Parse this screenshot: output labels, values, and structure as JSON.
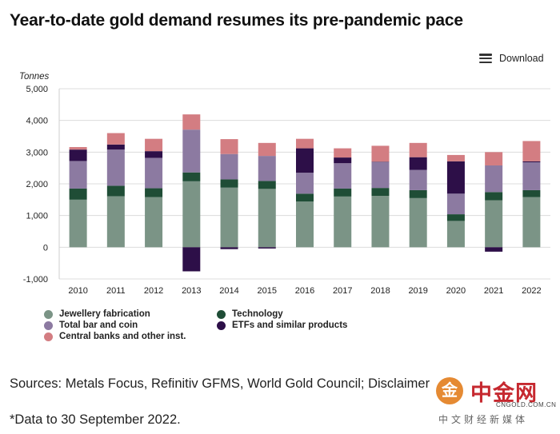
{
  "title": "Year-to-date gold demand resumes its pre-pandemic pace",
  "download_label": "Download",
  "icons": {
    "download": "hamburger-menu-icon"
  },
  "chart_data": {
    "type": "bar",
    "stacked": true,
    "title": "Year-to-date gold demand resumes its pre-pandemic pace",
    "ylabel": "Tonnes",
    "xlabel": "",
    "ylim": [
      -1000,
      5000
    ],
    "yticks": [
      -1000,
      0,
      1000,
      2000,
      3000,
      4000,
      5000
    ],
    "ytick_labels": [
      "-1,000",
      "0",
      "1,000",
      "2,000",
      "3,000",
      "4,000",
      "5,000"
    ],
    "grid": true,
    "categories": [
      "2010",
      "2011",
      "2012",
      "2013",
      "2014",
      "2015",
      "2016",
      "2017",
      "2018",
      "2019",
      "2020",
      "2021",
      "2022"
    ],
    "series": [
      {
        "name": "Jewellery fabrication",
        "color": "#7b9486",
        "values": [
          1500,
          1610,
          1580,
          2080,
          1880,
          1840,
          1440,
          1600,
          1620,
          1550,
          830,
          1480,
          1580
        ]
      },
      {
        "name": "Technology",
        "color": "#1f4d36",
        "values": [
          350,
          330,
          280,
          280,
          260,
          250,
          250,
          250,
          250,
          250,
          210,
          260,
          220
        ]
      },
      {
        "name": "Total bar and coin",
        "color": "#8c7aa1",
        "values": [
          870,
          1140,
          960,
          1350,
          800,
          790,
          660,
          800,
          820,
          640,
          650,
          840,
          880
        ]
      },
      {
        "name": "ETFs and similar products",
        "color": "#2d0f48",
        "values": [
          360,
          160,
          210,
          -760,
          -60,
          -40,
          770,
          180,
          10,
          400,
          1020,
          -140,
          30
        ]
      },
      {
        "name": "Central banks and other inst.",
        "color": "#d37d82",
        "values": [
          80,
          360,
          390,
          480,
          470,
          410,
          300,
          290,
          500,
          450,
          200,
          420,
          640
        ]
      }
    ],
    "legend_position": "bottom-left"
  },
  "source_text": "Sources: Metals Focus, Refinitiv GFMS, World Gold Council; Disclaimer",
  "note_text": "*Data to 30 September 2022.",
  "watermark": {
    "logo_char": "金",
    "name": "中金网",
    "domain": "CNGOLD.COM.CN",
    "tagline": "中文财经新媒体"
  }
}
